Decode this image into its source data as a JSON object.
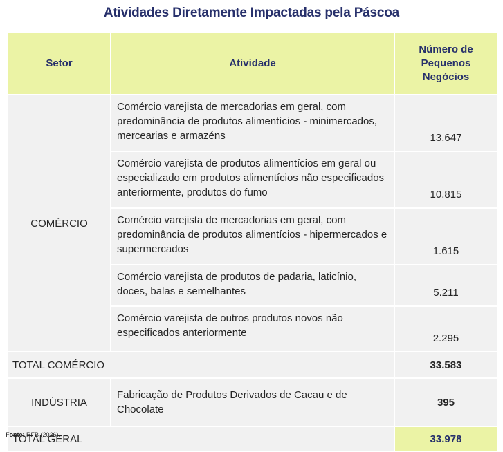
{
  "title": "Atividades Diretamente Impactadas pela Páscoa",
  "headers": {
    "setor": "Setor",
    "atividade": "Atividade",
    "numero": "Número de Pequenos Negócios"
  },
  "comercio": {
    "label": "COMÉRCIO",
    "rows": [
      {
        "activity": "Comércio varejista de mercadorias em geral, com predominância de produtos alimentícios - minimercados, mercearias e armazéns",
        "count": "13.647"
      },
      {
        "activity": "Comércio varejista de produtos alimentícios em geral ou especializado em produtos alimentícios não especificados anteriormente, produtos do fumo",
        "count": "10.815"
      },
      {
        "activity": "Comércio varejista de mercadorias em geral, com predominância de produtos alimentícios - hipermercados e supermercados",
        "count": "1.615"
      },
      {
        "activity": "Comércio varejista de produtos de padaria, laticínio, doces, balas e semelhantes",
        "count": "5.211"
      },
      {
        "activity": "Comércio varejista de outros produtos novos não especificados anteriormente",
        "count": "2.295"
      }
    ]
  },
  "total_comercio": {
    "label": "TOTAL COMÉRCIO",
    "value": "33.583"
  },
  "industria": {
    "label": "INDÚSTRIA",
    "activity": "Fabricação de Produtos Derivados de Cacau e de Chocolate",
    "count": "395"
  },
  "total_geral": {
    "label": "TOTAL GERAL",
    "value": "33.978"
  },
  "source": {
    "label": "Fonte:",
    "text": "RFB (2026)."
  }
}
